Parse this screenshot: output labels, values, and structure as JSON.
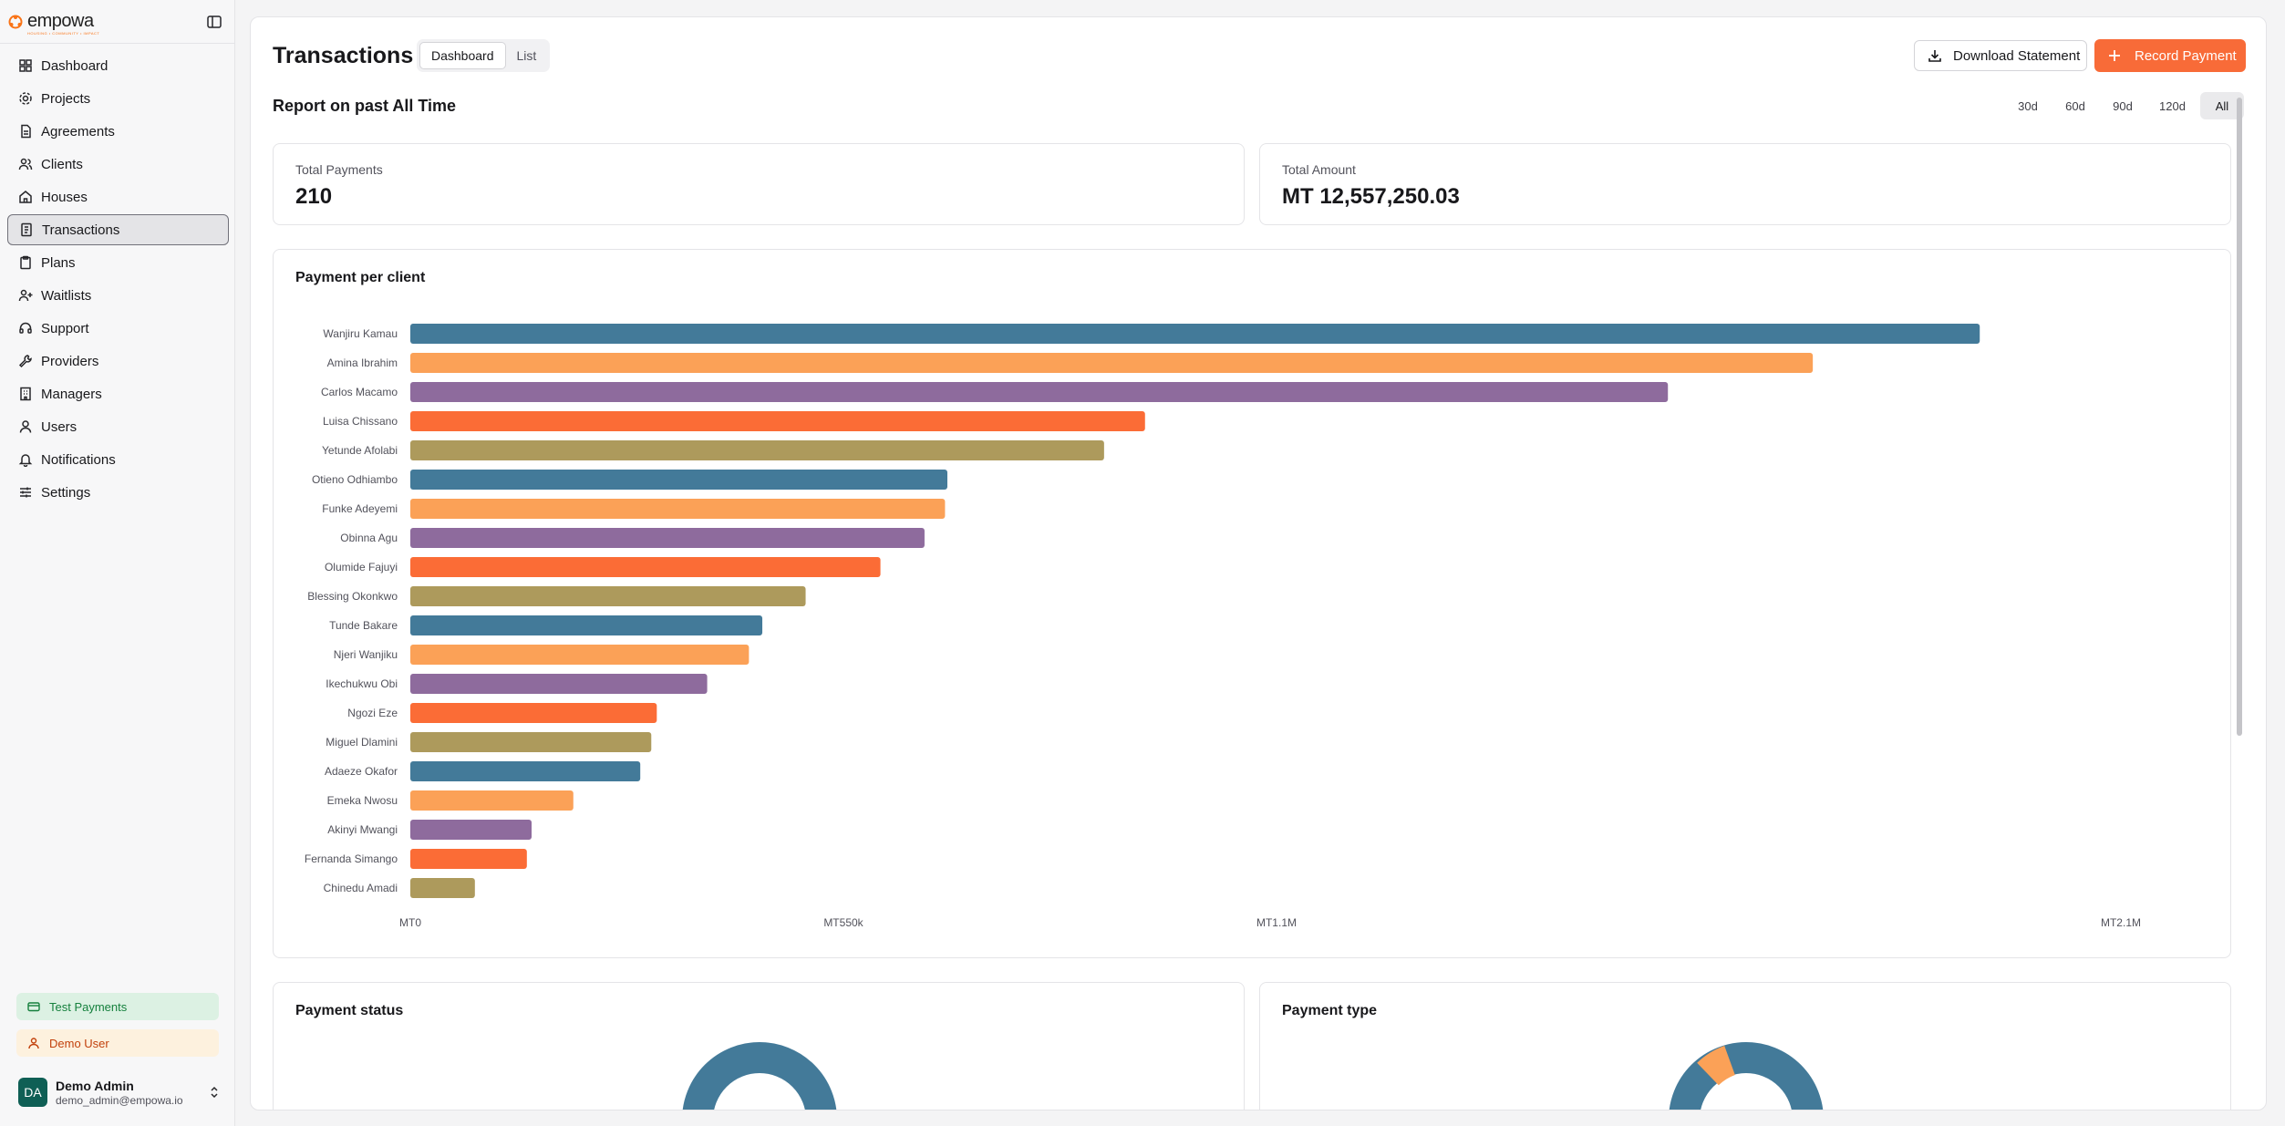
{
  "sidebar": {
    "logo": "empowa",
    "logo_tagline": "HOUSING • COMMUNITY • IMPACT",
    "items": [
      {
        "label": "Dashboard",
        "icon": "grid-icon"
      },
      {
        "label": "Projects",
        "icon": "cog-icon"
      },
      {
        "label": "Agreements",
        "icon": "file-icon"
      },
      {
        "label": "Clients",
        "icon": "users-icon"
      },
      {
        "label": "Houses",
        "icon": "home-icon"
      },
      {
        "label": "Transactions",
        "icon": "receipt-icon",
        "active": true
      },
      {
        "label": "Plans",
        "icon": "clipboard-icon"
      },
      {
        "label": "Waitlists",
        "icon": "user-plus-icon"
      },
      {
        "label": "Support",
        "icon": "headset-icon"
      },
      {
        "label": "Providers",
        "icon": "wrench-icon"
      },
      {
        "label": "Managers",
        "icon": "building-icon"
      },
      {
        "label": "Users",
        "icon": "user-icon"
      },
      {
        "label": "Notifications",
        "icon": "bell-icon"
      },
      {
        "label": "Settings",
        "icon": "sliders-icon"
      }
    ],
    "test_payments": "Test Payments",
    "demo_user": "Demo User",
    "user": {
      "initials": "DA",
      "name": "Demo Admin",
      "email": "demo_admin@empowa.io"
    }
  },
  "header": {
    "title": "Transactions",
    "tabs": [
      "Dashboard",
      "List"
    ],
    "active_tab": "Dashboard",
    "download_label": "Download Statement",
    "record_label": "Record Payment"
  },
  "report": {
    "title": "Report on past All Time",
    "ranges": [
      "30d",
      "60d",
      "90d",
      "120d",
      "All"
    ],
    "active_range": "All"
  },
  "stats": {
    "total_payments_label": "Total Payments",
    "total_payments_value": "210",
    "total_amount_label": "Total Amount",
    "total_amount_value": "MT 12,557,250.03"
  },
  "cards": {
    "payment_status": "Payment status",
    "payment_type": "Payment type"
  },
  "colors": {
    "accent": "#f86b38",
    "palette": [
      "#437a99",
      "#fba157",
      "#8e6b9d",
      "#fb6c36",
      "#ad9a5c"
    ]
  },
  "chart_data": {
    "type": "bar",
    "orientation": "horizontal",
    "title": "Payment per client",
    "categories": [
      "Wanjiru Kamau",
      "Amina Ibrahim",
      "Carlos Macamo",
      "Luisa Chissano",
      "Yetunde Afolabi",
      "Otieno Odhiambo",
      "Funke Adeyemi",
      "Obinna Agu",
      "Olumide Fajuyi",
      "Blessing Okonkwo",
      "Tunde Bakare",
      "Njeri Wanjiku",
      "Ikechukwu Obi",
      "Ngozi Eze",
      "Miguel Dlamini",
      "Adaeze Okafor",
      "Emeka Nwosu",
      "Akinyi Mwangi",
      "Fernanda Simango",
      "Chinedu Amadi"
    ],
    "values": [
      1993000,
      1781000,
      1597000,
      933000,
      881000,
      682000,
      679000,
      653000,
      597000,
      502000,
      447000,
      430000,
      377000,
      313000,
      306000,
      292000,
      207000,
      154000,
      148000,
      82000
    ],
    "xlim": [
      0,
      2200000
    ],
    "xticks": [
      0,
      550000,
      1100000,
      2100000
    ],
    "xtick_labels": [
      "MT0",
      "MT550k",
      "MT1.1M",
      "MT2.1M"
    ],
    "grid": false,
    "legend": "none"
  }
}
